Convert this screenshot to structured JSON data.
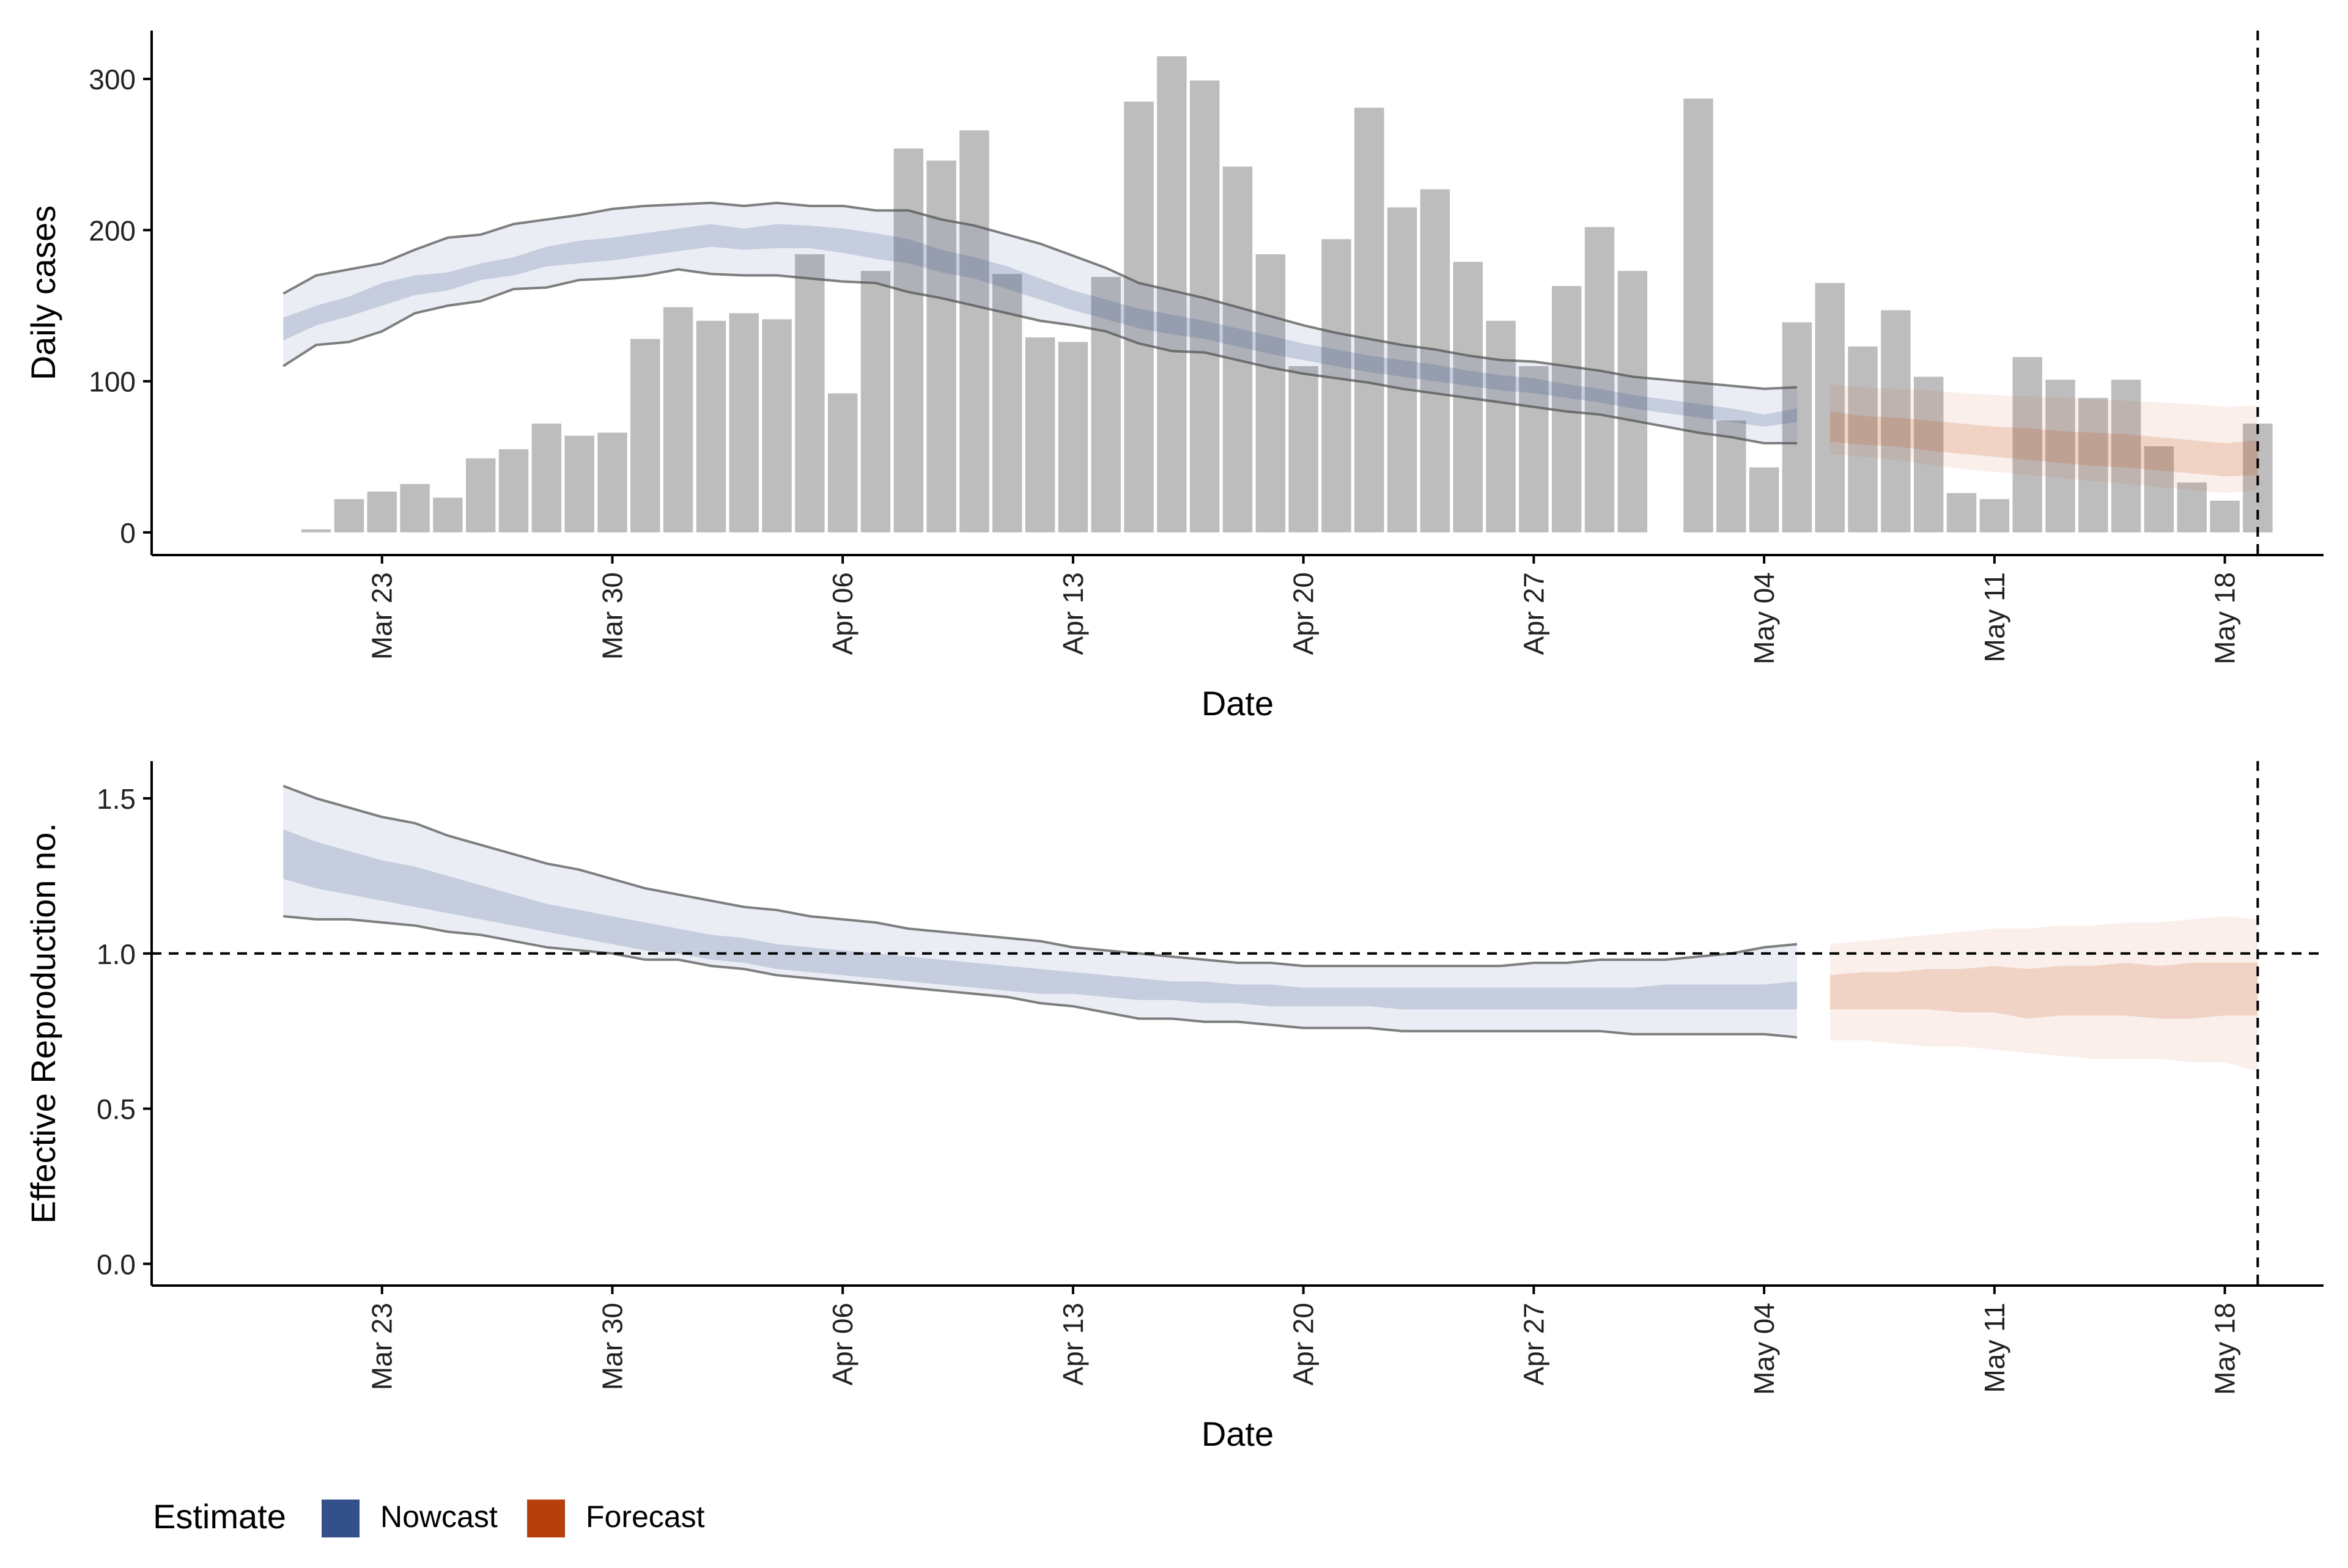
{
  "chart_data": [
    {
      "type": "bar",
      "panel": "cases",
      "title": "",
      "xlabel": "Date",
      "ylabel": "Daily cases",
      "x_ticks": [
        "Mar 23",
        "Mar 30",
        "Apr 06",
        "Apr 13",
        "Apr 20",
        "Apr 27",
        "May 04",
        "May 11",
        "May 18"
      ],
      "x_tick_dates": [
        "2020-03-23",
        "2020-03-30",
        "2020-04-06",
        "2020-04-13",
        "2020-04-20",
        "2020-04-27",
        "2020-05-04",
        "2020-05-11",
        "2020-05-18"
      ],
      "y_ticks": [
        "0",
        "100",
        "200",
        "300"
      ],
      "ylim": [
        -15,
        332
      ],
      "xlim": [
        "2020-03-16",
        "2020-05-21"
      ],
      "vline_date": "2020-05-19",
      "grid": false,
      "bars": {
        "dates": [
          "2020-03-21",
          "2020-03-22",
          "2020-03-23",
          "2020-03-24",
          "2020-03-25",
          "2020-03-26",
          "2020-03-27",
          "2020-03-28",
          "2020-03-29",
          "2020-03-30",
          "2020-03-31",
          "2020-04-01",
          "2020-04-02",
          "2020-04-03",
          "2020-04-04",
          "2020-04-05",
          "2020-04-06",
          "2020-04-07",
          "2020-04-08",
          "2020-04-09",
          "2020-04-10",
          "2020-04-11",
          "2020-04-12",
          "2020-04-13",
          "2020-04-14",
          "2020-04-15",
          "2020-04-16",
          "2020-04-17",
          "2020-04-18",
          "2020-04-19",
          "2020-04-20",
          "2020-04-21",
          "2020-04-22",
          "2020-04-23",
          "2020-04-24",
          "2020-04-25",
          "2020-04-26",
          "2020-04-27",
          "2020-04-28",
          "2020-04-29",
          "2020-04-30",
          "2020-05-01",
          "2020-05-02",
          "2020-05-03",
          "2020-05-04",
          "2020-05-05",
          "2020-05-06",
          "2020-05-07",
          "2020-05-08",
          "2020-05-09",
          "2020-05-10",
          "2020-05-11",
          "2020-05-12",
          "2020-05-13",
          "2020-05-14",
          "2020-05-15",
          "2020-05-16",
          "2020-05-17",
          "2020-05-18",
          "2020-05-19"
        ],
        "values": [
          2,
          22,
          27,
          32,
          23,
          49,
          55,
          72,
          64,
          66,
          128,
          149,
          140,
          145,
          141,
          184,
          92,
          173,
          254,
          246,
          266,
          171,
          129,
          126,
          169,
          285,
          315,
          299,
          242,
          184,
          110,
          194,
          281,
          215,
          227,
          179,
          140,
          110,
          163,
          202,
          173,
          0,
          287,
          74,
          43,
          139,
          165,
          123,
          147,
          103,
          26,
          22,
          116,
          101,
          89,
          101,
          57,
          33,
          21,
          72
        ]
      },
      "series": [
        {
          "name": "Nowcast",
          "dates": [
            "2020-03-20",
            "2020-03-21",
            "2020-03-22",
            "2020-03-23",
            "2020-03-24",
            "2020-03-25",
            "2020-03-26",
            "2020-03-27",
            "2020-03-28",
            "2020-03-29",
            "2020-03-30",
            "2020-03-31",
            "2020-04-01",
            "2020-04-02",
            "2020-04-03",
            "2020-04-04",
            "2020-04-05",
            "2020-04-06",
            "2020-04-07",
            "2020-04-08",
            "2020-04-09",
            "2020-04-10",
            "2020-04-11",
            "2020-04-12",
            "2020-04-13",
            "2020-04-14",
            "2020-04-15",
            "2020-04-16",
            "2020-04-17",
            "2020-04-18",
            "2020-04-19",
            "2020-04-20",
            "2020-04-21",
            "2020-04-22",
            "2020-04-23",
            "2020-04-24",
            "2020-04-25",
            "2020-04-26",
            "2020-04-27",
            "2020-04-28",
            "2020-04-29",
            "2020-04-30",
            "2020-05-01",
            "2020-05-02",
            "2020-05-03",
            "2020-05-04",
            "2020-05-05"
          ],
          "upper90": [
            158,
            170,
            174,
            178,
            187,
            195,
            197,
            204,
            207,
            210,
            214,
            216,
            217,
            218,
            216,
            218,
            216,
            216,
            213,
            213,
            207,
            203,
            197,
            191,
            183,
            175,
            165,
            160,
            155,
            149,
            143,
            137,
            132,
            128,
            124,
            121,
            117,
            114,
            113,
            110,
            107,
            103,
            101,
            99,
            97,
            95,
            96
          ],
          "upper50": [
            142,
            150,
            156,
            165,
            170,
            172,
            178,
            182,
            189,
            193,
            195,
            198,
            201,
            204,
            201,
            204,
            203,
            201,
            198,
            194,
            187,
            182,
            176,
            168,
            160,
            154,
            148,
            144,
            140,
            135,
            130,
            125,
            121,
            117,
            114,
            111,
            107,
            104,
            102,
            98,
            95,
            91,
            88,
            85,
            82,
            78,
            82
          ],
          "lower50": [
            127,
            137,
            143,
            150,
            157,
            160,
            167,
            170,
            176,
            178,
            180,
            183,
            186,
            189,
            187,
            188,
            188,
            185,
            181,
            178,
            172,
            168,
            161,
            154,
            147,
            141,
            135,
            131,
            128,
            123,
            118,
            114,
            110,
            106,
            103,
            100,
            97,
            94,
            92,
            89,
            86,
            82,
            79,
            76,
            73,
            70,
            73
          ],
          "lower90": [
            110,
            124,
            126,
            133,
            145,
            150,
            153,
            161,
            162,
            167,
            168,
            170,
            174,
            171,
            170,
            170,
            168,
            166,
            165,
            159,
            155,
            150,
            145,
            140,
            137,
            133,
            125,
            120,
            119,
            114,
            109,
            105,
            102,
            99,
            95,
            92,
            89,
            86,
            83,
            80,
            78,
            74,
            70,
            66,
            63,
            59,
            59
          ]
        },
        {
          "name": "Forecast",
          "dates": [
            "2020-05-06",
            "2020-05-07",
            "2020-05-08",
            "2020-05-09",
            "2020-05-10",
            "2020-05-11",
            "2020-05-12",
            "2020-05-13",
            "2020-05-14",
            "2020-05-15",
            "2020-05-16",
            "2020-05-17",
            "2020-05-18",
            "2020-05-19"
          ],
          "upper90": [
            98,
            96,
            95,
            94,
            92,
            91,
            90,
            89,
            88,
            87,
            86,
            85,
            83,
            84
          ],
          "upper50": [
            80,
            77,
            76,
            74,
            72,
            70,
            69,
            67,
            66,
            65,
            63,
            61,
            59,
            61
          ],
          "lower50": [
            60,
            58,
            57,
            54,
            52,
            50,
            48,
            46,
            44,
            43,
            41,
            39,
            37,
            38
          ],
          "lower90": [
            52,
            50,
            48,
            45,
            42,
            40,
            38,
            36,
            34,
            32,
            30,
            28,
            26,
            28
          ]
        }
      ]
    },
    {
      "type": "area",
      "panel": "rt",
      "title": "",
      "xlabel": "Date",
      "ylabel": "Effective Reproduction no.",
      "x_ticks": [
        "Mar 23",
        "Mar 30",
        "Apr 06",
        "Apr 13",
        "Apr 20",
        "Apr 27",
        "May 04",
        "May 11",
        "May 18"
      ],
      "x_tick_dates": [
        "2020-03-23",
        "2020-03-30",
        "2020-04-06",
        "2020-04-13",
        "2020-04-20",
        "2020-04-27",
        "2020-05-04",
        "2020-05-11",
        "2020-05-18"
      ],
      "y_ticks": [
        "0.0",
        "0.5",
        "1.0",
        "1.5"
      ],
      "ylim": [
        -0.07,
        1.62
      ],
      "xlim": [
        "2020-03-16",
        "2020-05-21"
      ],
      "hline_value": 1.0,
      "vline_date": "2020-05-19",
      "grid": false,
      "series": [
        {
          "name": "Nowcast",
          "dates": [
            "2020-03-20",
            "2020-03-21",
            "2020-03-22",
            "2020-03-23",
            "2020-03-24",
            "2020-03-25",
            "2020-03-26",
            "2020-03-27",
            "2020-03-28",
            "2020-03-29",
            "2020-03-30",
            "2020-03-31",
            "2020-04-01",
            "2020-04-02",
            "2020-04-03",
            "2020-04-04",
            "2020-04-05",
            "2020-04-06",
            "2020-04-07",
            "2020-04-08",
            "2020-04-09",
            "2020-04-10",
            "2020-04-11",
            "2020-04-12",
            "2020-04-13",
            "2020-04-14",
            "2020-04-15",
            "2020-04-16",
            "2020-04-17",
            "2020-04-18",
            "2020-04-19",
            "2020-04-20",
            "2020-04-21",
            "2020-04-22",
            "2020-04-23",
            "2020-04-24",
            "2020-04-25",
            "2020-04-26",
            "2020-04-27",
            "2020-04-28",
            "2020-04-29",
            "2020-04-30",
            "2020-05-01",
            "2020-05-02",
            "2020-05-03",
            "2020-05-04",
            "2020-05-05"
          ],
          "upper90": [
            1.54,
            1.5,
            1.47,
            1.44,
            1.42,
            1.38,
            1.35,
            1.32,
            1.29,
            1.27,
            1.24,
            1.21,
            1.19,
            1.17,
            1.15,
            1.14,
            1.12,
            1.11,
            1.1,
            1.08,
            1.07,
            1.06,
            1.05,
            1.04,
            1.02,
            1.01,
            1.0,
            0.99,
            0.98,
            0.97,
            0.97,
            0.96,
            0.96,
            0.96,
            0.96,
            0.96,
            0.96,
            0.96,
            0.97,
            0.97,
            0.98,
            0.98,
            0.98,
            0.99,
            1.0,
            1.02,
            1.03
          ],
          "upper50": [
            1.4,
            1.36,
            1.33,
            1.3,
            1.28,
            1.25,
            1.22,
            1.19,
            1.16,
            1.14,
            1.12,
            1.1,
            1.08,
            1.06,
            1.05,
            1.03,
            1.02,
            1.01,
            1.0,
            0.99,
            0.98,
            0.97,
            0.96,
            0.95,
            0.94,
            0.93,
            0.92,
            0.91,
            0.91,
            0.9,
            0.9,
            0.89,
            0.89,
            0.89,
            0.89,
            0.89,
            0.89,
            0.89,
            0.89,
            0.89,
            0.89,
            0.89,
            0.9,
            0.9,
            0.9,
            0.9,
            0.91
          ],
          "lower50": [
            1.24,
            1.21,
            1.19,
            1.17,
            1.15,
            1.13,
            1.11,
            1.09,
            1.07,
            1.05,
            1.03,
            1.01,
            1.0,
            0.98,
            0.97,
            0.95,
            0.94,
            0.93,
            0.92,
            0.91,
            0.9,
            0.89,
            0.88,
            0.87,
            0.87,
            0.86,
            0.85,
            0.85,
            0.84,
            0.84,
            0.83,
            0.83,
            0.83,
            0.83,
            0.82,
            0.82,
            0.82,
            0.82,
            0.82,
            0.82,
            0.82,
            0.82,
            0.82,
            0.82,
            0.82,
            0.82,
            0.82
          ],
          "lower90": [
            1.12,
            1.11,
            1.11,
            1.1,
            1.09,
            1.07,
            1.06,
            1.04,
            1.02,
            1.01,
            1.0,
            0.98,
            0.98,
            0.96,
            0.95,
            0.93,
            0.92,
            0.91,
            0.9,
            0.89,
            0.88,
            0.87,
            0.86,
            0.84,
            0.83,
            0.81,
            0.79,
            0.79,
            0.78,
            0.78,
            0.77,
            0.76,
            0.76,
            0.76,
            0.75,
            0.75,
            0.75,
            0.75,
            0.75,
            0.75,
            0.75,
            0.74,
            0.74,
            0.74,
            0.74,
            0.74,
            0.73
          ]
        },
        {
          "name": "Forecast",
          "dates": [
            "2020-05-06",
            "2020-05-07",
            "2020-05-08",
            "2020-05-09",
            "2020-05-10",
            "2020-05-11",
            "2020-05-12",
            "2020-05-13",
            "2020-05-14",
            "2020-05-15",
            "2020-05-16",
            "2020-05-17",
            "2020-05-18",
            "2020-05-19"
          ],
          "upper90": [
            1.03,
            1.04,
            1.05,
            1.06,
            1.07,
            1.08,
            1.08,
            1.09,
            1.09,
            1.1,
            1.1,
            1.11,
            1.12,
            1.11
          ],
          "upper50": [
            0.93,
            0.94,
            0.94,
            0.95,
            0.95,
            0.96,
            0.95,
            0.96,
            0.96,
            0.97,
            0.96,
            0.97,
            0.97,
            0.97
          ],
          "lower50": [
            0.82,
            0.82,
            0.82,
            0.82,
            0.81,
            0.81,
            0.79,
            0.8,
            0.8,
            0.8,
            0.79,
            0.79,
            0.8,
            0.8
          ],
          "lower90": [
            0.72,
            0.72,
            0.71,
            0.7,
            0.7,
            0.69,
            0.68,
            0.67,
            0.66,
            0.66,
            0.66,
            0.65,
            0.65,
            0.62
          ]
        }
      ]
    }
  ],
  "legend": {
    "title": "Estimate",
    "position": "bottom-left",
    "items": [
      {
        "label": "Nowcast",
        "color": "#34508a"
      },
      {
        "label": "Forecast",
        "color": "#b5400d"
      }
    ]
  },
  "colors": {
    "nowcast_band": "#34508a",
    "forecast_band": "#c4501a",
    "bar": "#bdbdbd",
    "interval_line": "#555555"
  }
}
